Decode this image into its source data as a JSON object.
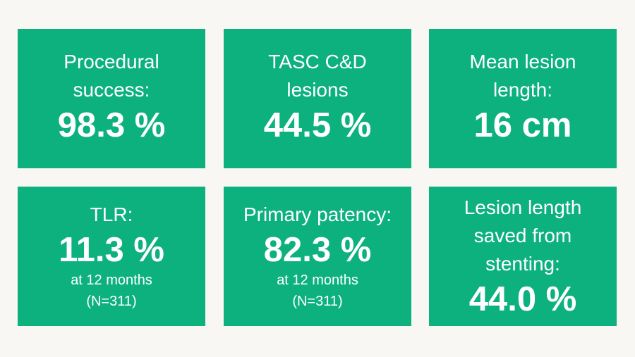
{
  "cards": [
    {
      "label": [
        "Procedural",
        "success:"
      ],
      "value": "98.3 %"
    },
    {
      "label": [
        "TASC C&D",
        "lesions"
      ],
      "value": "44.5 %"
    },
    {
      "label": [
        "Mean lesion",
        "length:"
      ],
      "value": "16 cm"
    },
    {
      "label": [
        "TLR:"
      ],
      "value": "11.3 %",
      "sub": [
        "at 12 months",
        "(N=311)"
      ]
    },
    {
      "label": [
        "Primary patency:"
      ],
      "value": "82.3 %",
      "sub": [
        "at 12 months",
        "(N=311)"
      ]
    },
    {
      "label": [
        "Lesion length",
        "saved from",
        "stenting:"
      ],
      "value": "44.0 %"
    }
  ],
  "colors": {
    "card": "#0db17e",
    "background": "#f8f7f4"
  }
}
